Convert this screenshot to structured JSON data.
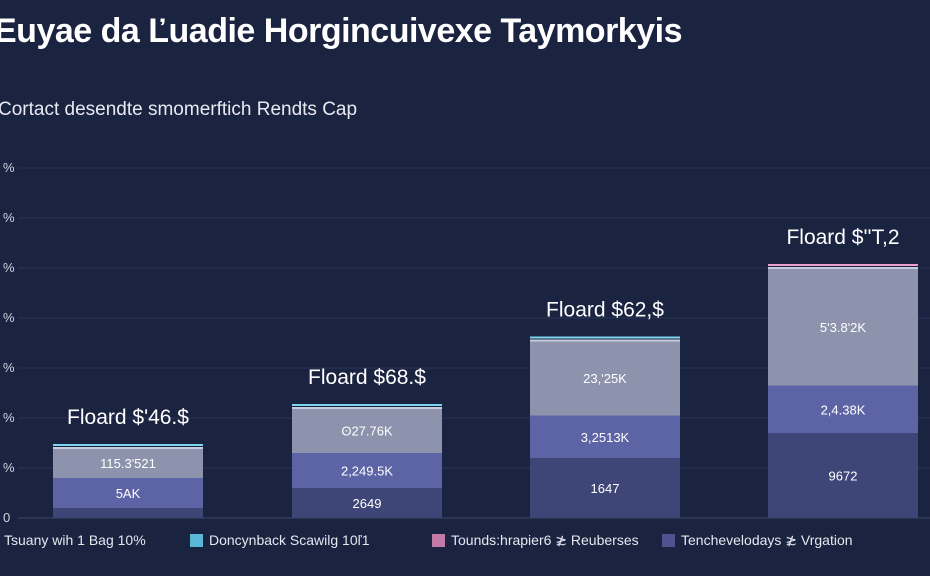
{
  "header": {
    "title": "Euyae da Ľuadie Horgincuivexe Taymorkyis",
    "subtitle": "Cortact desendte smomerftich Rendts Cap"
  },
  "watermark": "",
  "legend": [
    {
      "label": "Tsuany wih 1 Bag 10%",
      "color": "#2a2e4a"
    },
    {
      "label": "Doncynback Scawilg 10ľ1",
      "color": "#5ab8d6"
    },
    {
      "label": "Tounds:hrapier6 ≵ Reuberses",
      "color": "#c47aa6"
    },
    {
      "label": "Tenchevelodays ≵ Vrgation",
      "color": "#4e5390"
    }
  ],
  "colors": {
    "background": "#1a2340",
    "seg_bottom": "#3e4677",
    "seg_middle": "#5d64a6",
    "seg_top": "#8e93ad",
    "cap_cyan": "#7fd4f0",
    "cap_pink": "#f0a0cc"
  },
  "chart_data": {
    "type": "bar",
    "stacked": true,
    "title": "Euyae da Ľuadie Horgincuivexe Taymorkyis",
    "subtitle": "Cortact desendte smomerftich Rendts Cap",
    "y_tick_labels": [
      "%",
      "%",
      "%",
      "%",
      "%",
      "%",
      "%",
      "0"
    ],
    "ylim": [
      0,
      7
    ],
    "grid": true,
    "legend_position": "bottom",
    "bars": [
      {
        "total_label": "Floard $ʹ46.$",
        "segments": [
          {
            "value": 0.2,
            "label": ""
          },
          {
            "value": 0.6,
            "label": "5AK"
          },
          {
            "value": 0.6,
            "label": "115.3ʹ521"
          }
        ]
      },
      {
        "total_label": "Floard $68.$",
        "segments": [
          {
            "value": 0.6,
            "label": "2649"
          },
          {
            "value": 0.7,
            "label": "2,249.5K"
          },
          {
            "value": 0.9,
            "label": "ʘ27.76K"
          }
        ]
      },
      {
        "total_label": "Floard $62,$",
        "segments": [
          {
            "value": 1.2,
            "label": "1647"
          },
          {
            "value": 0.85,
            "label": "3,2513K"
          },
          {
            "value": 1.5,
            "label": "23,ʹ25K"
          }
        ]
      },
      {
        "total_label": "Floard $ʹʹT,2",
        "segments": [
          {
            "value": 1.7,
            "label": "9672"
          },
          {
            "value": 0.95,
            "label": "2,4.38K"
          },
          {
            "value": 2.35,
            "label": "5ʹ3.8ʹ2K"
          }
        ]
      }
    ]
  }
}
